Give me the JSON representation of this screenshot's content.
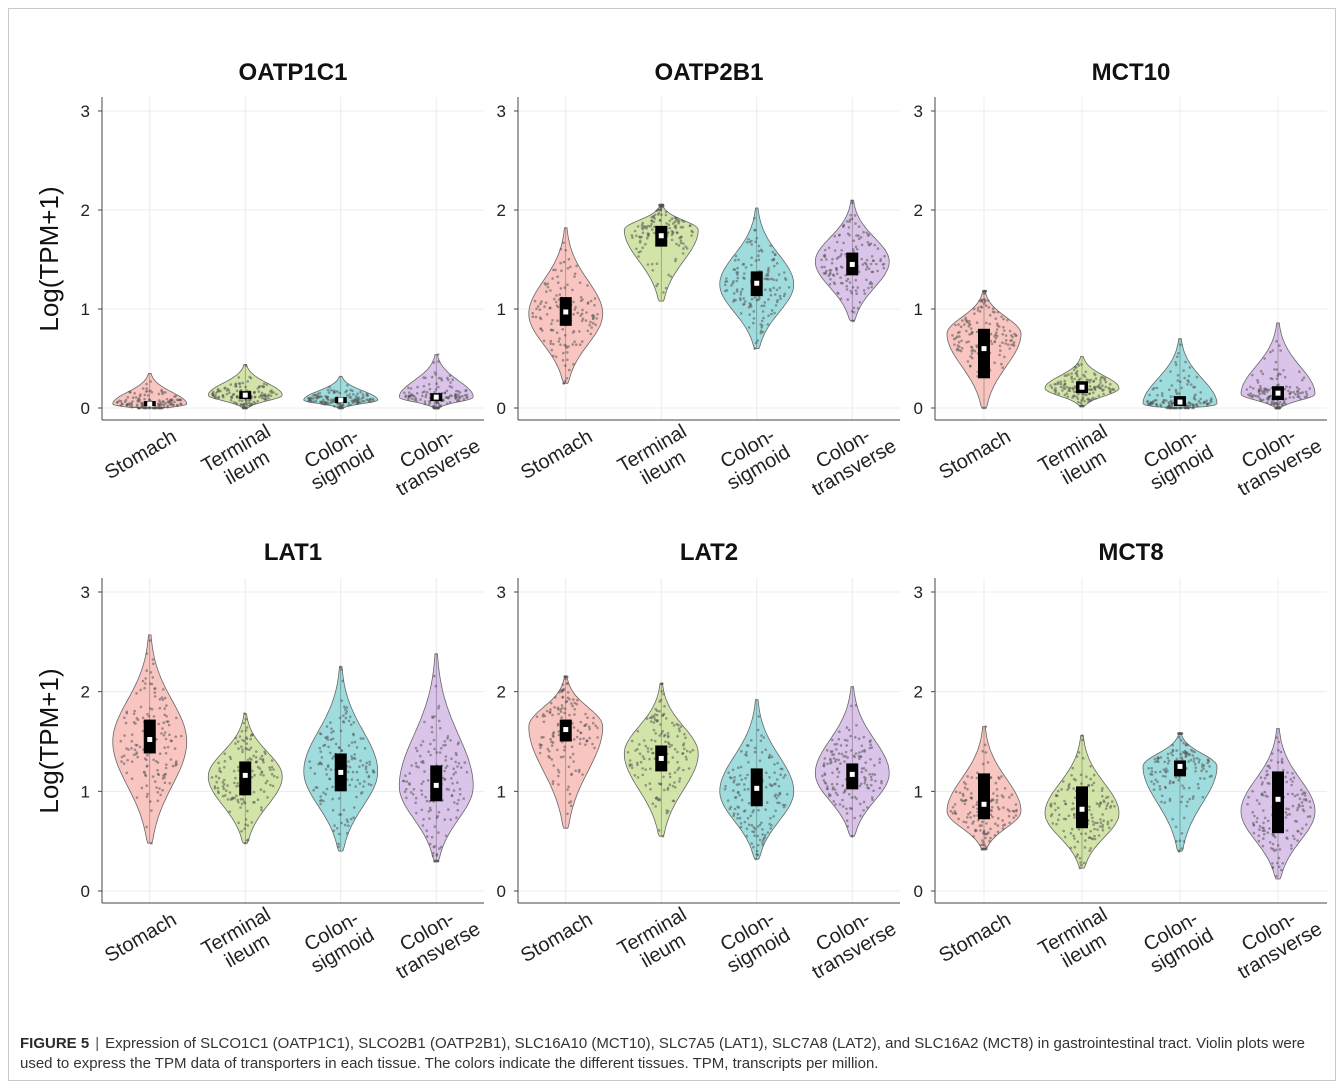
{
  "caption": {
    "label": "FIGURE 5",
    "separator": "|",
    "text": "Expression of SLCO1C1 (OATP1C1), SLCO2B1 (OATP2B1), SLC16A10 (MCT10), SLC7A5 (LAT1), SLC7A8 (LAT2), and SLC16A2 (MCT8) in gastrointestinal tract. Violin plots were used to express the TPM data of transporters in each tissue. The colors indicate the different tissues. TPM, transcripts per million."
  },
  "colors": {
    "Stomach": "#f4a6a0",
    "Terminal ileum": "#bcd67a",
    "Colon-sigmoid": "#6ccacb",
    "Colon-transverse": "#c7a4de"
  },
  "chart_data": [
    {
      "type": "violin",
      "title": "OATP1C1",
      "ylabel": "Log(TPM+1)",
      "ylim": [
        0,
        3
      ],
      "yticks": [
        0,
        1,
        2,
        3
      ],
      "categories": [
        "Stomach",
        "Terminal ileum",
        "Colon-sigmoid",
        "Colon-transverse"
      ],
      "category_labels": [
        [
          "Stomach"
        ],
        [
          "Terminal",
          "ileum"
        ],
        [
          "Colon-",
          "sigmoid"
        ],
        [
          "Colon-",
          "transverse"
        ]
      ],
      "median": [
        0.04,
        0.13,
        0.08,
        0.11
      ],
      "q1": [
        0.02,
        0.09,
        0.05,
        0.07
      ],
      "q3": [
        0.07,
        0.17,
        0.11,
        0.15
      ],
      "min": [
        0.0,
        0.0,
        0.0,
        0.0
      ],
      "max": [
        0.35,
        0.44,
        0.32,
        0.54
      ],
      "mode": [
        0.04,
        0.13,
        0.08,
        0.11
      ],
      "grid": true
    },
    {
      "type": "violin",
      "title": "OATP2B1",
      "ylabel": "",
      "ylim": [
        0,
        3
      ],
      "yticks": [
        0,
        1,
        2,
        3
      ],
      "categories": [
        "Stomach",
        "Terminal ileum",
        "Colon-sigmoid",
        "Colon-transverse"
      ],
      "category_labels": [
        [
          "Stomach"
        ],
        [
          "Terminal",
          "ileum"
        ],
        [
          "Colon-",
          "sigmoid"
        ],
        [
          "Colon-",
          "transverse"
        ]
      ],
      "median": [
        0.97,
        1.74,
        1.26,
        1.45
      ],
      "q1": [
        0.83,
        1.63,
        1.13,
        1.34
      ],
      "q3": [
        1.12,
        1.84,
        1.38,
        1.57
      ],
      "min": [
        0.25,
        1.08,
        0.6,
        0.88
      ],
      "max": [
        1.82,
        2.05,
        2.02,
        2.1
      ],
      "mode": [
        0.95,
        1.8,
        1.25,
        1.48
      ],
      "grid": true
    },
    {
      "type": "violin",
      "title": "MCT10",
      "ylabel": "",
      "ylim": [
        0,
        3
      ],
      "yticks": [
        0,
        1,
        2,
        3
      ],
      "categories": [
        "Stomach",
        "Terminal ileum",
        "Colon-sigmoid",
        "Colon-transverse"
      ],
      "category_labels": [
        [
          "Stomach"
        ],
        [
          "Terminal",
          "ileum"
        ],
        [
          "Colon-",
          "sigmoid"
        ],
        [
          "Colon-",
          "transverse"
        ]
      ],
      "median": [
        0.6,
        0.21,
        0.06,
        0.15
      ],
      "q1": [
        0.3,
        0.15,
        0.02,
        0.08
      ],
      "q3": [
        0.8,
        0.27,
        0.12,
        0.22
      ],
      "min": [
        0.0,
        0.02,
        0.0,
        0.0
      ],
      "max": [
        1.18,
        0.52,
        0.7,
        0.86
      ],
      "mode": [
        0.75,
        0.2,
        0.04,
        0.14
      ],
      "grid": true
    },
    {
      "type": "violin",
      "title": "LAT1",
      "ylabel": "Log(TPM+1)",
      "ylim": [
        0,
        3
      ],
      "yticks": [
        0,
        1,
        2,
        3
      ],
      "categories": [
        "Stomach",
        "Terminal ileum",
        "Colon-sigmoid",
        "Colon-transverse"
      ],
      "category_labels": [
        [
          "Stomach"
        ],
        [
          "Terminal",
          "ileum"
        ],
        [
          "Colon-",
          "sigmoid"
        ],
        [
          "Colon-",
          "transverse"
        ]
      ],
      "median": [
        1.52,
        1.16,
        1.19,
        1.06
      ],
      "q1": [
        1.38,
        0.96,
        1.0,
        0.9
      ],
      "q3": [
        1.72,
        1.3,
        1.38,
        1.26
      ],
      "min": [
        0.48,
        0.48,
        0.4,
        0.3
      ],
      "max": [
        2.57,
        1.78,
        2.25,
        2.38
      ],
      "mode": [
        1.5,
        1.15,
        1.2,
        1.05
      ],
      "grid": true
    },
    {
      "type": "violin",
      "title": "LAT2",
      "ylabel": "",
      "ylim": [
        0,
        3
      ],
      "yticks": [
        0,
        1,
        2,
        3
      ],
      "categories": [
        "Stomach",
        "Terminal ileum",
        "Colon-sigmoid",
        "Colon-transverse"
      ],
      "category_labels": [
        [
          "Stomach"
        ],
        [
          "Terminal",
          "ileum"
        ],
        [
          "Colon-",
          "sigmoid"
        ],
        [
          "Colon-",
          "transverse"
        ]
      ],
      "median": [
        1.62,
        1.33,
        1.03,
        1.17
      ],
      "q1": [
        1.5,
        1.2,
        0.85,
        1.02
      ],
      "q3": [
        1.72,
        1.46,
        1.23,
        1.28
      ],
      "min": [
        0.63,
        0.55,
        0.32,
        0.55
      ],
      "max": [
        2.15,
        2.08,
        1.92,
        2.05
      ],
      "mode": [
        1.65,
        1.38,
        1.0,
        1.18
      ],
      "grid": true
    },
    {
      "type": "violin",
      "title": "MCT8",
      "ylabel": "",
      "ylim": [
        0,
        3
      ],
      "yticks": [
        0,
        1,
        2,
        3
      ],
      "categories": [
        "Stomach",
        "Terminal ileum",
        "Colon-sigmoid",
        "Colon-transverse"
      ],
      "category_labels": [
        [
          "Stomach"
        ],
        [
          "Terminal",
          "ileum"
        ],
        [
          "Colon-",
          "sigmoid"
        ],
        [
          "Colon-",
          "transverse"
        ]
      ],
      "median": [
        0.87,
        0.82,
        1.25,
        0.92
      ],
      "q1": [
        0.72,
        0.63,
        1.15,
        0.58
      ],
      "q3": [
        1.18,
        1.05,
        1.31,
        1.2
      ],
      "min": [
        0.42,
        0.23,
        0.4,
        0.12
      ],
      "max": [
        1.65,
        1.56,
        1.58,
        1.63
      ],
      "mode": [
        0.8,
        0.78,
        1.25,
        0.8
      ],
      "grid": true
    }
  ]
}
